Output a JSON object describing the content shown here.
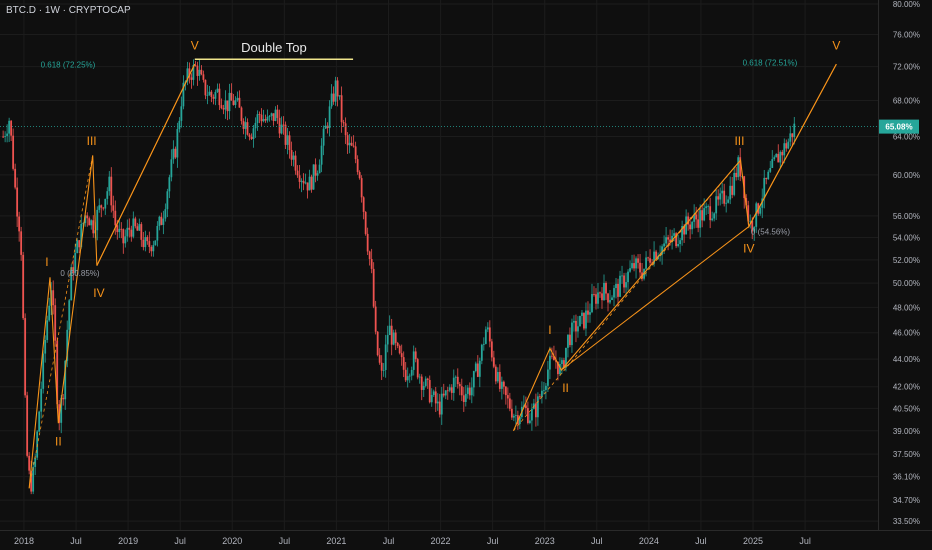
{
  "header": {
    "ticker": "BTC.D · 1W · CRYPTOCAP"
  },
  "colors": {
    "background": "#0f0f0f",
    "grid": "#1c1c1c",
    "up": "#26a69a",
    "down": "#ef5350",
    "wave": "#f7931a",
    "double_top_line": "#f0e68c",
    "price_tag": "#26a69a",
    "fib": "#26a69a",
    "text": "#b2b5be"
  },
  "chart_data": {
    "type": "candlestick",
    "title": "",
    "y_scale": "log",
    "ylim": [
      33.0,
      80.0
    ],
    "y_ticks": [
      80.0,
      76.0,
      72.0,
      68.0,
      64.0,
      60.0,
      56.0,
      54.0,
      52.0,
      50.0,
      48.0,
      46.0,
      44.0,
      42.0,
      40.5,
      39.0,
      37.5,
      36.1,
      34.7,
      33.5
    ],
    "y_tick_labels": [
      "80.00%",
      "76.00%",
      "72.00%",
      "68.00%",
      "64.00%",
      "60.00%",
      "56.00%",
      "54.00%",
      "52.00%",
      "50.00%",
      "48.00%",
      "46.00%",
      "44.00%",
      "42.00%",
      "40.50%",
      "39.00%",
      "37.50%",
      "36.10%",
      "34.70%",
      "33.50%"
    ],
    "x_ticks": [
      {
        "label": "2018",
        "t": 2018.0
      },
      {
        "label": "Jul",
        "t": 2018.5
      },
      {
        "label": "2019",
        "t": 2019.0
      },
      {
        "label": "Jul",
        "t": 2019.5
      },
      {
        "label": "2020",
        "t": 2020.0
      },
      {
        "label": "Jul",
        "t": 2020.5
      },
      {
        "label": "2021",
        "t": 2021.0
      },
      {
        "label": "Jul",
        "t": 2021.5
      },
      {
        "label": "2022",
        "t": 2022.0
      },
      {
        "label": "Jul",
        "t": 2022.5
      },
      {
        "label": "2023",
        "t": 2023.0
      },
      {
        "label": "Jul",
        "t": 2023.5
      },
      {
        "label": "2024",
        "t": 2024.0
      },
      {
        "label": "Jul",
        "t": 2024.5
      },
      {
        "label": "2025",
        "t": 2025.0
      },
      {
        "label": "Jul",
        "t": 2025.5
      }
    ],
    "x_range": [
      2017.77,
      2026.2
    ],
    "last_price": {
      "value": 65.08,
      "label": "65.08%"
    },
    "price_path": [
      [
        2017.8,
        64.0
      ],
      [
        2017.86,
        66.0
      ],
      [
        2017.92,
        58.0
      ],
      [
        2017.97,
        54.0
      ],
      [
        2018.02,
        38.0
      ],
      [
        2018.06,
        35.5
      ],
      [
        2018.1,
        36.5
      ],
      [
        2018.16,
        41.5
      ],
      [
        2018.21,
        46.0
      ],
      [
        2018.26,
        50.0
      ],
      [
        2018.3,
        45.0
      ],
      [
        2018.33,
        39.5
      ],
      [
        2018.38,
        42.0
      ],
      [
        2018.45,
        50.5
      ],
      [
        2018.52,
        53.5
      ],
      [
        2018.6,
        56.5
      ],
      [
        2018.66,
        55.0
      ],
      [
        2018.7,
        56.0
      ],
      [
        2018.76,
        57.5
      ],
      [
        2018.82,
        59.0
      ],
      [
        2018.88,
        55.0
      ],
      [
        2018.95,
        53.5
      ],
      [
        2019.02,
        55.0
      ],
      [
        2019.1,
        54.5
      ],
      [
        2019.18,
        53.0
      ],
      [
        2019.26,
        54.0
      ],
      [
        2019.33,
        56.0
      ],
      [
        2019.4,
        60.0
      ],
      [
        2019.46,
        63.0
      ],
      [
        2019.52,
        69.0
      ],
      [
        2019.58,
        71.0
      ],
      [
        2019.66,
        72.0
      ],
      [
        2019.72,
        69.5
      ],
      [
        2019.8,
        68.5
      ],
      [
        2019.86,
        69.0
      ],
      [
        2019.94,
        67.5
      ],
      [
        2020.02,
        68.0
      ],
      [
        2020.1,
        66.0
      ],
      [
        2020.18,
        64.5
      ],
      [
        2020.26,
        66.5
      ],
      [
        2020.34,
        65.5
      ],
      [
        2020.42,
        66.5
      ],
      [
        2020.5,
        64.0
      ],
      [
        2020.58,
        62.0
      ],
      [
        2020.66,
        60.0
      ],
      [
        2020.74,
        59.0
      ],
      [
        2020.82,
        61.0
      ],
      [
        2020.88,
        64.0
      ],
      [
        2020.94,
        67.0
      ],
      [
        2021.0,
        70.0
      ],
      [
        2021.05,
        66.0
      ],
      [
        2021.1,
        63.0
      ],
      [
        2021.16,
        62.5
      ],
      [
        2021.22,
        60.5
      ],
      [
        2021.28,
        55.0
      ],
      [
        2021.34,
        50.5
      ],
      [
        2021.38,
        45.0
      ],
      [
        2021.44,
        42.5
      ],
      [
        2021.5,
        46.5
      ],
      [
        2021.58,
        44.5
      ],
      [
        2021.66,
        43.0
      ],
      [
        2021.74,
        44.0
      ],
      [
        2021.82,
        42.5
      ],
      [
        2021.9,
        41.5
      ],
      [
        2021.98,
        40.5
      ],
      [
        2022.06,
        41.5
      ],
      [
        2022.14,
        42.5
      ],
      [
        2022.22,
        41.5
      ],
      [
        2022.3,
        42.0
      ],
      [
        2022.38,
        44.0
      ],
      [
        2022.44,
        46.5
      ],
      [
        2022.48,
        45.0
      ],
      [
        2022.56,
        42.0
      ],
      [
        2022.64,
        41.0
      ],
      [
        2022.72,
        40.0
      ],
      [
        2022.8,
        40.5
      ],
      [
        2022.86,
        40.0
      ],
      [
        2022.92,
        40.5
      ],
      [
        2022.98,
        42.0
      ],
      [
        2023.04,
        43.5
      ],
      [
        2023.1,
        44.0
      ],
      [
        2023.16,
        43.0
      ],
      [
        2023.22,
        45.5
      ],
      [
        2023.3,
        46.5
      ],
      [
        2023.38,
        47.0
      ],
      [
        2023.46,
        48.5
      ],
      [
        2023.54,
        49.5
      ],
      [
        2023.62,
        49.0
      ],
      [
        2023.7,
        49.5
      ],
      [
        2023.78,
        50.5
      ],
      [
        2023.86,
        51.5
      ],
      [
        2023.94,
        51.0
      ],
      [
        2024.02,
        52.5
      ],
      [
        2024.1,
        53.0
      ],
      [
        2024.18,
        53.5
      ],
      [
        2024.26,
        54.0
      ],
      [
        2024.34,
        55.0
      ],
      [
        2024.42,
        55.5
      ],
      [
        2024.5,
        56.0
      ],
      [
        2024.58,
        56.5
      ],
      [
        2024.66,
        57.0
      ],
      [
        2024.74,
        58.0
      ],
      [
        2024.8,
        59.0
      ],
      [
        2024.86,
        61.0
      ],
      [
        2024.9,
        60.0
      ],
      [
        2024.94,
        56.5
      ],
      [
        2024.98,
        55.0
      ],
      [
        2025.04,
        56.5
      ],
      [
        2025.1,
        58.5
      ],
      [
        2025.16,
        60.0
      ],
      [
        2025.22,
        61.5
      ],
      [
        2025.28,
        62.5
      ],
      [
        2025.34,
        63.5
      ],
      [
        2025.4,
        65.08
      ]
    ],
    "wave_lines": [
      {
        "name": "2018-2019 impulse",
        "points": [
          [
            2018.05,
            35.4
          ],
          [
            2018.25,
            50.5
          ],
          [
            2018.33,
            39.5
          ],
          [
            2018.66,
            62.0
          ],
          [
            2018.7,
            51.5
          ],
          [
            2019.64,
            72.3
          ]
        ]
      },
      {
        "name": "2022-2025 impulse",
        "points": [
          [
            2022.7,
            39.0
          ],
          [
            2023.05,
            44.8
          ],
          [
            2023.16,
            43.2
          ],
          [
            2024.88,
            61.5
          ],
          [
            2024.96,
            55.0
          ],
          [
            2025.8,
            72.3
          ]
        ]
      }
    ],
    "channel_lines": [
      {
        "points": [
          [
            2018.7,
            51.5
          ],
          [
            2019.64,
            72.3
          ]
        ]
      },
      {
        "points": [
          [
            2023.16,
            43.2
          ],
          [
            2024.96,
            55.0
          ]
        ]
      },
      {
        "points": [
          [
            2024.96,
            55.0
          ],
          [
            2025.8,
            72.3
          ]
        ]
      }
    ],
    "dashed_lines": [
      {
        "points": [
          [
            2018.05,
            35.4
          ],
          [
            2018.66,
            62.0
          ]
        ]
      },
      {
        "points": [
          [
            2022.7,
            39.0
          ],
          [
            2024.88,
            61.5
          ]
        ]
      }
    ],
    "double_top": {
      "label": "Double Top",
      "y": 72.9,
      "x_start": 2019.64,
      "x_end": 2021.16
    },
    "fib_labels": [
      {
        "text": "0.618 (72.25%)",
        "x": 2018.16,
        "y": 72.25,
        "side": "left"
      },
      {
        "text": "0.618 (72.51%)",
        "x": 2024.9,
        "y": 72.51,
        "side": "left"
      },
      {
        "text": "0 (50.85%)",
        "x": 2018.35,
        "y": 50.85,
        "side": "left"
      },
      {
        "text": "0 (54.56%)",
        "x": 2024.98,
        "y": 54.56,
        "side": "left"
      }
    ],
    "wave_labels": [
      {
        "text": "I",
        "x": 2018.22,
        "y": 51.8
      },
      {
        "text": "II",
        "x": 2018.33,
        "y": 38.3
      },
      {
        "text": "III",
        "x": 2018.65,
        "y": 63.5
      },
      {
        "text": "IV",
        "x": 2018.72,
        "y": 49.2
      },
      {
        "text": "V",
        "x": 2019.64,
        "y": 74.6
      },
      {
        "text": "I",
        "x": 2023.05,
        "y": 46.2
      },
      {
        "text": "II",
        "x": 2023.2,
        "y": 41.9
      },
      {
        "text": "III",
        "x": 2024.87,
        "y": 63.5
      },
      {
        "text": "IV",
        "x": 2024.96,
        "y": 53.0
      },
      {
        "text": "V",
        "x": 2025.8,
        "y": 74.6
      }
    ]
  }
}
